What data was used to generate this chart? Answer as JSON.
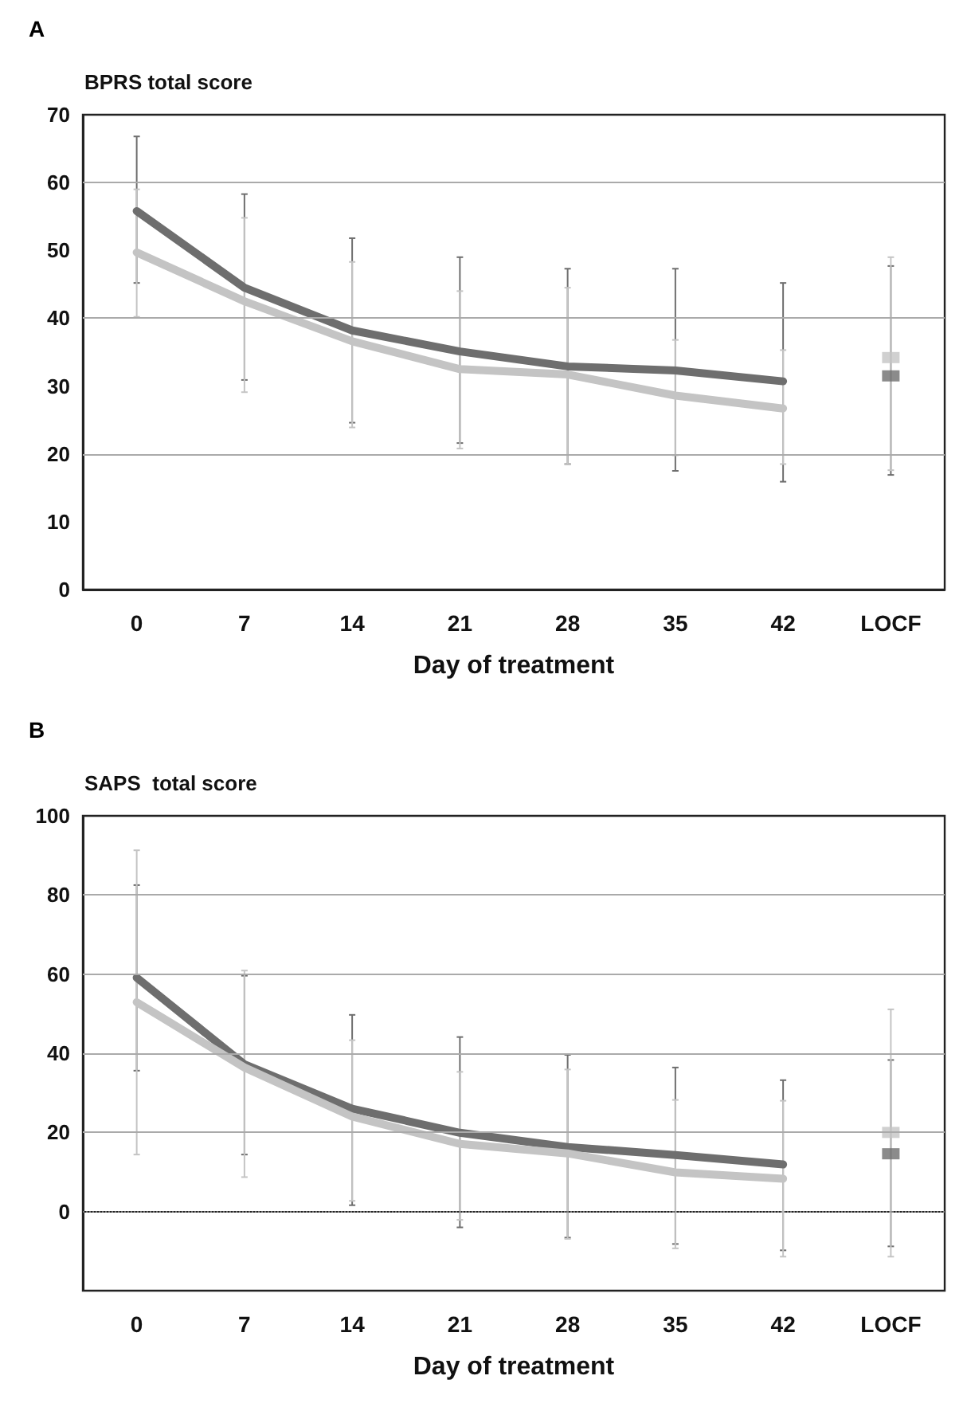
{
  "chart_data": [
    {
      "type": "line",
      "title": "BPRS total score",
      "xlabel": "Day of treatment",
      "annotations": [
        "A"
      ],
      "categories": [
        "0",
        "7",
        "14",
        "21",
        "28",
        "35",
        "42",
        "LOCF"
      ],
      "ylim": [
        0,
        70
      ],
      "yticks": [
        0,
        10,
        20,
        30,
        40,
        50,
        60,
        70
      ],
      "grid": false,
      "marker": "none",
      "ref_lines": [
        {
          "axis": "y",
          "value": 20,
          "color": "#aaaaaa"
        },
        {
          "axis": "y",
          "value": 40,
          "color": "#aaaaaa"
        },
        {
          "axis": "y",
          "value": 60,
          "color": "#aaaaaa"
        }
      ],
      "series": [
        {
          "color": "#6e6e6e",
          "values": [
            55.8,
            44.5,
            38.2,
            35.1,
            32.9,
            32.3,
            30.7,
            null
          ],
          "errors": [
            [
              45.2,
              66.8
            ],
            [
              30.9,
              58.3
            ],
            [
              24.6,
              51.8
            ],
            [
              21.6,
              49.0
            ],
            [
              18.5,
              47.3
            ],
            [
              17.5,
              47.3
            ],
            [
              15.9,
              45.2
            ],
            null
          ]
        },
        {
          "color": "#c4c4c4",
          "values": [
            49.7,
            42.5,
            36.6,
            32.5,
            31.7,
            28.6,
            26.7,
            null
          ],
          "errors": [
            [
              40.2,
              59.0
            ],
            [
              29.1,
              54.8
            ],
            [
              23.9,
              48.3
            ],
            [
              20.8,
              44.0
            ],
            [
              18.5,
              44.5
            ],
            [
              19.8,
              36.8
            ],
            [
              18.5,
              35.3
            ],
            null
          ]
        },
        {
          "type": "scatter",
          "marker": "square",
          "color": "#6e6e6e",
          "x": [
            "LOCF"
          ],
          "values": [
            31.5
          ],
          "errors": [
            [
              16.9,
              47.7
            ]
          ]
        },
        {
          "type": "scatter",
          "marker": "square",
          "color": "#c4c4c4",
          "x": [
            "LOCF"
          ],
          "values": [
            34.2
          ],
          "errors": [
            [
              17.6,
              49.0
            ]
          ]
        }
      ]
    },
    {
      "type": "line",
      "title": "SAPS  total score",
      "xlabel": "Day of treatment",
      "annotations": [
        "B"
      ],
      "categories": [
        "0",
        "7",
        "14",
        "21",
        "28",
        "35",
        "42",
        "LOCF"
      ],
      "ylim": [
        -20,
        100
      ],
      "yticks": [
        0,
        20,
        40,
        60,
        80,
        100
      ],
      "grid": false,
      "marker": "none",
      "ref_lines": [
        {
          "axis": "y",
          "value": 0,
          "color": "#777777",
          "line_style": "dotted"
        },
        {
          "axis": "y",
          "value": 20,
          "color": "#aaaaaa"
        },
        {
          "axis": "y",
          "value": 40,
          "color": "#aaaaaa"
        },
        {
          "axis": "y",
          "value": 60,
          "color": "#aaaaaa"
        },
        {
          "axis": "y",
          "value": 80,
          "color": "#aaaaaa"
        }
      ],
      "series": [
        {
          "color": "#6e6e6e",
          "values": [
            59.1,
            37.2,
            26.0,
            19.9,
            16.3,
            14.3,
            11.9,
            null
          ],
          "errors": [
            [
              35.6,
              82.5
            ],
            [
              14.4,
              59.6
            ],
            [
              1.6,
              49.7
            ],
            [
              -4.0,
              44.1
            ],
            [
              -6.6,
              39.6
            ],
            [
              -8.2,
              36.4
            ],
            [
              -9.8,
              33.2
            ],
            null
          ]
        },
        {
          "color": "#c4c4c4",
          "values": [
            52.9,
            36.4,
            24.0,
            17.1,
            14.7,
            9.9,
            8.3,
            null
          ],
          "errors": [
            [
              14.4,
              91.3
            ],
            [
              8.7,
              60.9
            ],
            [
              2.7,
              43.3
            ],
            [
              -2.1,
              35.3
            ],
            [
              -6.9,
              35.9
            ],
            [
              -9.3,
              28.2
            ],
            [
              -11.4,
              28.0
            ],
            null
          ]
        },
        {
          "type": "scatter",
          "marker": "square",
          "color": "#6e6e6e",
          "x": [
            "LOCF"
          ],
          "values": [
            14.6
          ],
          "errors": [
            [
              -8.8,
              38.3
            ]
          ]
        },
        {
          "type": "scatter",
          "marker": "square",
          "color": "#c4c4c4",
          "x": [
            "LOCF"
          ],
          "values": [
            20.0
          ],
          "errors": [
            [
              -11.4,
              51.1
            ]
          ]
        }
      ]
    }
  ]
}
